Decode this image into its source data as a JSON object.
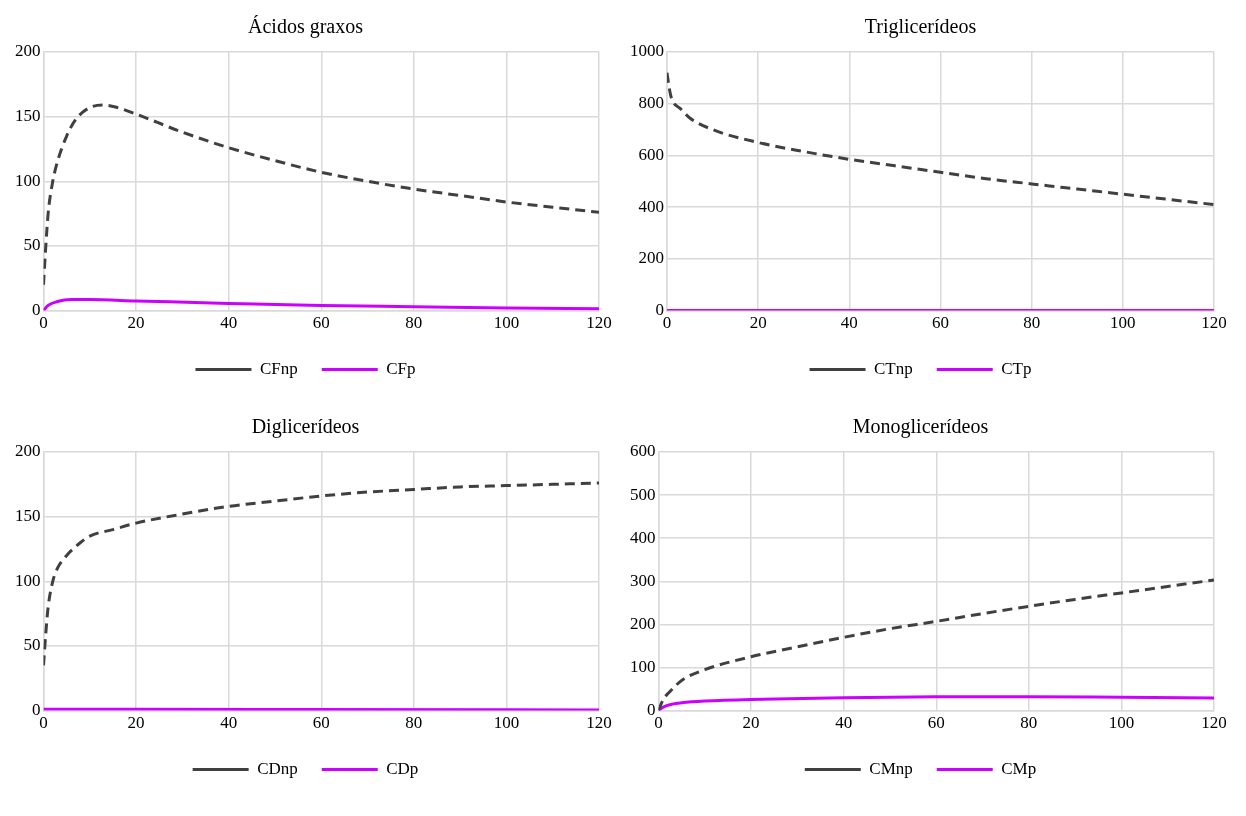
{
  "chart_data": [
    {
      "type": "line",
      "title": "Ácidos graxos",
      "xlim": [
        0,
        120
      ],
      "xticks": [
        0,
        20,
        40,
        60,
        80,
        100,
        120
      ],
      "ylim": [
        0,
        200
      ],
      "yticks": [
        0,
        50,
        100,
        150,
        200
      ],
      "grid": true,
      "legend": "bottom",
      "series": [
        {
          "name": "CFnp",
          "color": "#404040",
          "line_style": "dashed",
          "x": [
            0,
            0.5,
            1,
            2,
            3,
            5,
            7,
            10,
            13,
            16,
            20,
            30,
            40,
            50,
            60,
            70,
            80,
            90,
            100,
            110,
            120
          ],
          "values": [
            20,
            50,
            75,
            100,
            115,
            135,
            148,
            157,
            159,
            157,
            152,
            138,
            126,
            116,
            107,
            100,
            94,
            89,
            84,
            80,
            76
          ]
        },
        {
          "name": "CFp",
          "color": "#cc00ff",
          "line_style": "solid",
          "x": [
            0,
            1,
            3,
            6,
            10,
            20,
            40,
            60,
            80,
            100,
            120
          ],
          "values": [
            0,
            4,
            7,
            8.5,
            8.5,
            7.5,
            5.5,
            4,
            3,
            2,
            1.5
          ]
        }
      ]
    },
    {
      "type": "line",
      "title": "Triglicerídeos",
      "xlim": [
        0,
        120
      ],
      "xticks": [
        0,
        20,
        40,
        60,
        80,
        100,
        120
      ],
      "ylim": [
        0,
        1000
      ],
      "yticks": [
        0,
        200,
        400,
        600,
        800,
        1000
      ],
      "grid": true,
      "legend": "bottom",
      "series": [
        {
          "name": "CTnp",
          "color": "#404040",
          "line_style": "dashed",
          "x": [
            0,
            0.5,
            1,
            3,
            5,
            10,
            20,
            30,
            40,
            50,
            60,
            70,
            80,
            90,
            100,
            110,
            120
          ],
          "values": [
            920,
            860,
            820,
            780,
            745,
            700,
            650,
            615,
            585,
            560,
            535,
            510,
            490,
            470,
            450,
            430,
            410
          ]
        },
        {
          "name": "CTp",
          "color": "#cc00ff",
          "line_style": "solid",
          "x": [
            0,
            120
          ],
          "values": [
            0,
            0
          ]
        }
      ]
    },
    {
      "type": "line",
      "title": "Diglicerídeos",
      "xlim": [
        0,
        120
      ],
      "xticks": [
        0,
        20,
        40,
        60,
        80,
        100,
        120
      ],
      "ylim": [
        0,
        200
      ],
      "yticks": [
        0,
        50,
        100,
        150,
        200
      ],
      "grid": true,
      "legend": "bottom",
      "series": [
        {
          "name": "CDnp",
          "color": "#404040",
          "line_style": "dashed",
          "x": [
            0,
            0.5,
            1,
            2,
            3,
            5,
            8,
            10,
            15,
            20,
            30,
            40,
            50,
            60,
            70,
            80,
            90,
            100,
            110,
            120
          ],
          "values": [
            35,
            60,
            80,
            100,
            110,
            120,
            130,
            135,
            140,
            145,
            152,
            158,
            162,
            166,
            169,
            171,
            173,
            174,
            175,
            176
          ]
        },
        {
          "name": "CDp",
          "color": "#cc00ff",
          "line_style": "solid",
          "x": [
            0,
            20,
            120
          ],
          "values": [
            1,
            1,
            0.5
          ]
        }
      ]
    },
    {
      "type": "line",
      "title": "Monoglicerídeos",
      "xlim": [
        0,
        120
      ],
      "xticks": [
        0,
        20,
        40,
        60,
        80,
        100,
        120
      ],
      "ylim": [
        0,
        600
      ],
      "yticks": [
        0,
        100,
        200,
        300,
        400,
        500,
        600
      ],
      "grid": true,
      "legend": "bottom",
      "series": [
        {
          "name": "CMnp",
          "color": "#404040",
          "line_style": "dashed",
          "x": [
            0,
            1,
            3,
            5,
            10,
            20,
            30,
            40,
            50,
            60,
            70,
            80,
            90,
            100,
            110,
            120
          ],
          "values": [
            0,
            25,
            50,
            70,
            95,
            125,
            148,
            170,
            190,
            207,
            225,
            242,
            258,
            273,
            288,
            303
          ]
        },
        {
          "name": "CMp",
          "color": "#cc00ff",
          "line_style": "solid",
          "x": [
            0,
            1,
            3,
            5,
            10,
            20,
            40,
            60,
            80,
            100,
            120
          ],
          "values": [
            0,
            8,
            15,
            18,
            22,
            26,
            30,
            32,
            32,
            31,
            29
          ]
        }
      ]
    }
  ]
}
